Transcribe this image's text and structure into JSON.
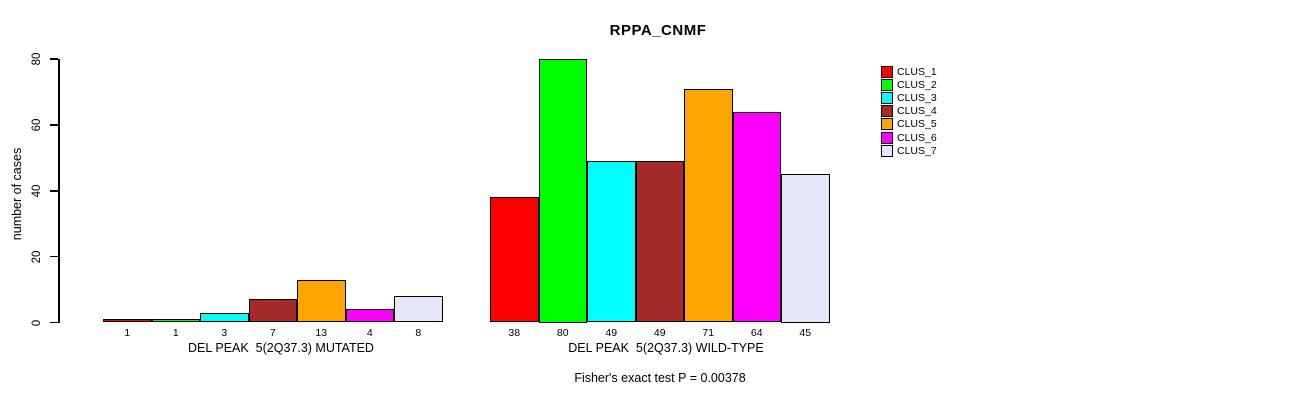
{
  "chart_data": {
    "type": "bar",
    "title": "RPPA_CNMF",
    "ylabel": "number of cases",
    "xlabel": "",
    "ylim": [
      0,
      80
    ],
    "yticks": [
      0,
      20,
      40,
      60,
      80
    ],
    "grid": false,
    "legend_position": "top-right",
    "bar_border_color": "#000000",
    "series": [
      {
        "name": "CLUS_1",
        "color": "#FF0000",
        "values": [
          1,
          38
        ]
      },
      {
        "name": "CLUS_2",
        "color": "#00FF00",
        "values": [
          1,
          80
        ]
      },
      {
        "name": "CLUS_3",
        "color": "#00FFFF",
        "values": [
          3,
          49
        ]
      },
      {
        "name": "CLUS_4",
        "color": "#A52A2A",
        "values": [
          7,
          49
        ]
      },
      {
        "name": "CLUS_5",
        "color": "#FFA500",
        "values": [
          13,
          71
        ]
      },
      {
        "name": "CLUS_6",
        "color": "#FF00FF",
        "values": [
          4,
          64
        ]
      },
      {
        "name": "CLUS_7",
        "color": "#E6E6FA",
        "values": [
          8,
          45
        ]
      }
    ],
    "groups": [
      {
        "label": "DEL PEAK  5(2Q37.3) MUTATED",
        "values": [
          1,
          1,
          3,
          7,
          13,
          4,
          8
        ]
      },
      {
        "label": "DEL PEAK  5(2Q37.3) WILD-TYPE",
        "values": [
          38,
          80,
          49,
          49,
          71,
          64,
          45
        ]
      }
    ],
    "footnote": "Fisher's exact test P = 0.00378"
  }
}
